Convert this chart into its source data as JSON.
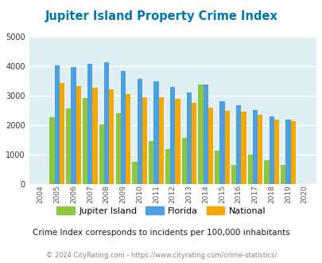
{
  "title": "Jupiter Island Property Crime Index",
  "years": [
    "2004",
    "2005",
    "2006",
    "2007",
    "2008",
    "2009",
    "2010",
    "2011",
    "2012",
    "2013",
    "2014",
    "2015",
    "2016",
    "2017",
    "2018",
    "2019",
    "2020"
  ],
  "jupiter_island": [
    0,
    2280,
    2560,
    2920,
    2030,
    2400,
    760,
    1460,
    1200,
    1570,
    3380,
    1130,
    660,
    1000,
    800,
    650,
    0
  ],
  "florida": [
    0,
    4020,
    3990,
    4090,
    4140,
    3840,
    3560,
    3500,
    3290,
    3110,
    3380,
    2810,
    2690,
    2510,
    2300,
    2190,
    0
  ],
  "national": [
    0,
    3440,
    3340,
    3270,
    3220,
    3050,
    2960,
    2940,
    2890,
    2750,
    2610,
    2490,
    2460,
    2360,
    2200,
    2140,
    0
  ],
  "jupiter_color": "#8dc63f",
  "florida_color": "#4d9fde",
  "national_color": "#f7a800",
  "bg_color": "#dff0f5",
  "title_color": "#0077aa",
  "subtitle_color": "#1a1a2e",
  "footer_color": "#888888",
  "footer_link_color": "#4477bb",
  "ylim": [
    0,
    5000
  ],
  "ylabel_ticks": [
    0,
    1000,
    2000,
    3000,
    4000,
    5000
  ],
  "subtitle": "Crime Index corresponds to incidents per 100,000 inhabitants",
  "footer_prefix": "© 2024 CityRating.com - ",
  "footer_link": "https://www.cityrating.com/crime-statistics/",
  "legend_labels": [
    "Jupiter Island",
    "Florida",
    "National"
  ]
}
